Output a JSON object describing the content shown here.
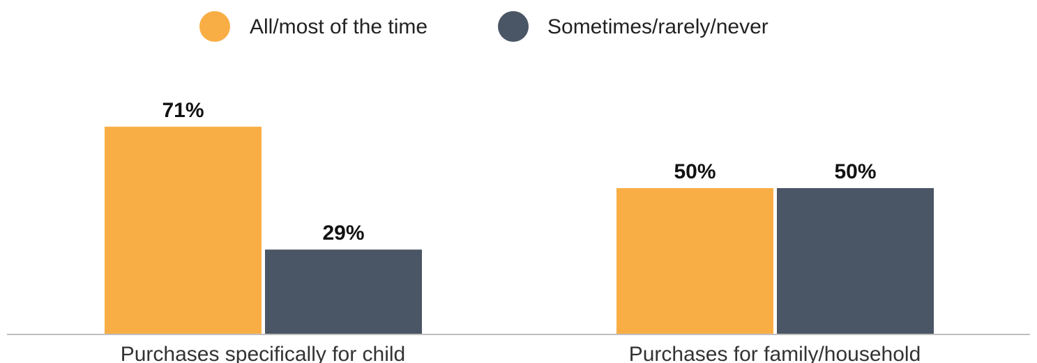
{
  "chart_data": {
    "type": "bar",
    "categories": [
      "Purchases specifically for child",
      "Purchases for family/household"
    ],
    "series": [
      {
        "name": "All/most of the time",
        "color": "#F9AE45",
        "values": [
          71,
          50
        ],
        "labels": [
          "71%",
          "50%"
        ]
      },
      {
        "name": "Sometimes/rarely/never",
        "color": "#4A5565",
        "values": [
          29,
          50
        ],
        "labels": [
          "29%",
          "50%"
        ]
      }
    ],
    "ylim": [
      0,
      100
    ],
    "grid": false,
    "legend_position": "top-center",
    "baseline_color": "#BFBFBF"
  }
}
